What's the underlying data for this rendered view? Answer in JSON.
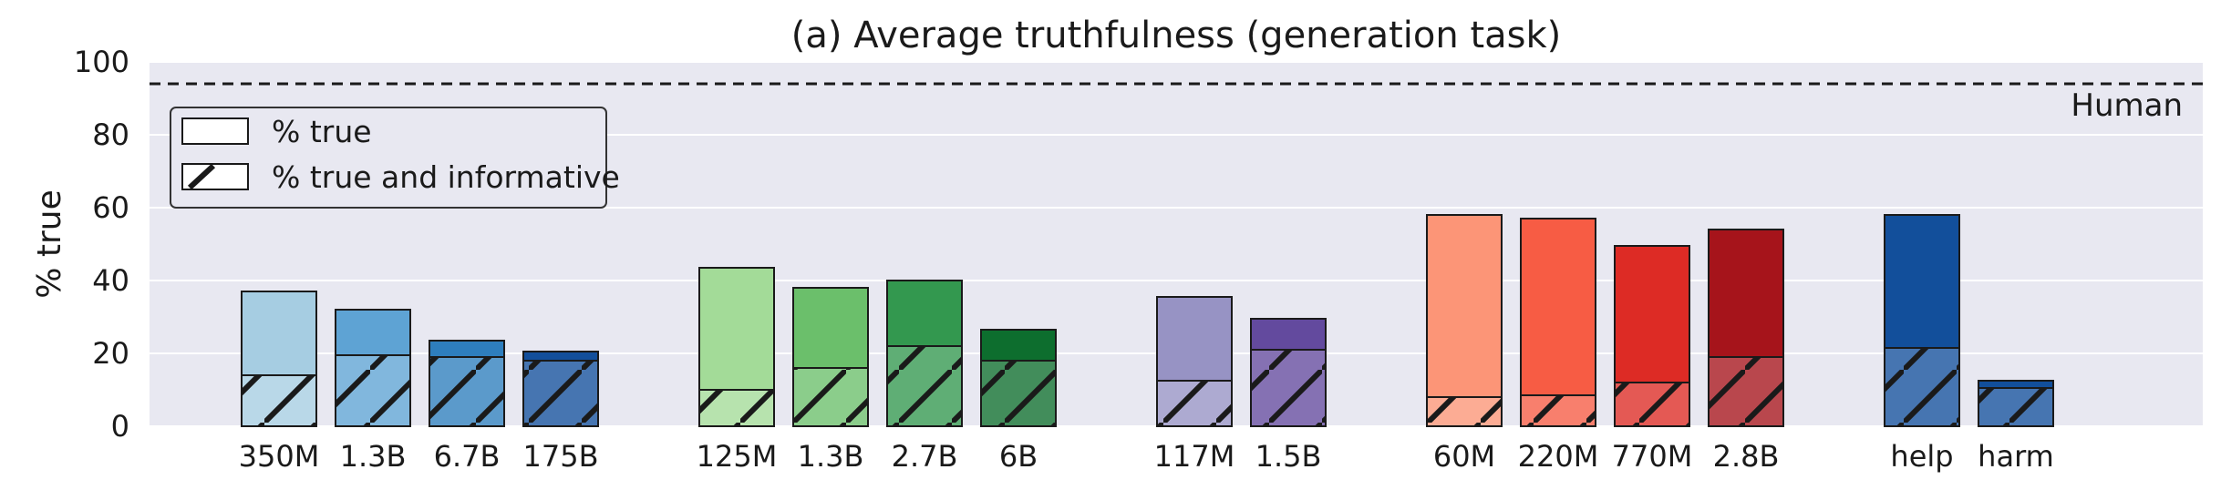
{
  "chart_data": {
    "type": "bar",
    "title": "(a) Average truthfulness (generation task)",
    "xlabel": "",
    "ylabel": "% true",
    "ylim": [
      0,
      100
    ],
    "yticks": [
      0,
      20,
      40,
      60,
      80,
      100
    ],
    "grid": true,
    "legend_position": "top-left",
    "legend": [
      {
        "label": "% true",
        "hatched": false
      },
      {
        "label": "% true and informative",
        "hatched": true
      }
    ],
    "reference_line": {
      "value": 94,
      "label": "Human",
      "style": "dashed"
    },
    "groups": [
      {
        "bars": [
          {
            "label": "350M",
            "true": 37,
            "true_and_informative": 14,
            "color": "#a6cde2"
          },
          {
            "label": "1.3B",
            "true": 32,
            "true_and_informative": 19.5,
            "color": "#5ea3d4"
          },
          {
            "label": "6.7B",
            "true": 23.5,
            "true_and_informative": 19,
            "color": "#2e7ebd"
          },
          {
            "label": "175B",
            "true": 20.5,
            "true_and_informative": 18,
            "color": "#124f9b"
          }
        ]
      },
      {
        "bars": [
          {
            "label": "125M",
            "true": 43.5,
            "true_and_informative": 10,
            "color": "#a3db98"
          },
          {
            "label": "1.3B",
            "true": 38,
            "true_and_informative": 16,
            "color": "#6bbf6b"
          },
          {
            "label": "2.7B",
            "true": 40,
            "true_and_informative": 22,
            "color": "#33984f"
          },
          {
            "label": "6B",
            "true": 26.5,
            "true_and_informative": 18,
            "color": "#0d6e2e"
          }
        ]
      },
      {
        "bars": [
          {
            "label": "117M",
            "true": 35.5,
            "true_and_informative": 12.5,
            "color": "#9793c4"
          },
          {
            "label": "1.5B",
            "true": 29.5,
            "true_and_informative": 21,
            "color": "#634a9e"
          }
        ]
      },
      {
        "bars": [
          {
            "label": "60M",
            "true": 58,
            "true_and_informative": 8,
            "color": "#fc9577"
          },
          {
            "label": "220M",
            "true": 57,
            "true_and_informative": 8.5,
            "color": "#f75c44"
          },
          {
            "label": "770M",
            "true": 49.5,
            "true_and_informative": 12,
            "color": "#dd2b25"
          },
          {
            "label": "2.8B",
            "true": 54,
            "true_and_informative": 19,
            "color": "#a6141b"
          }
        ]
      },
      {
        "bars": [
          {
            "label": "help",
            "true": 58,
            "true_and_informative": 21.5,
            "color": "#124f9b"
          },
          {
            "label": "harm",
            "true": 12.5,
            "true_and_informative": 10.5,
            "color": "#124f9b"
          }
        ]
      }
    ]
  }
}
